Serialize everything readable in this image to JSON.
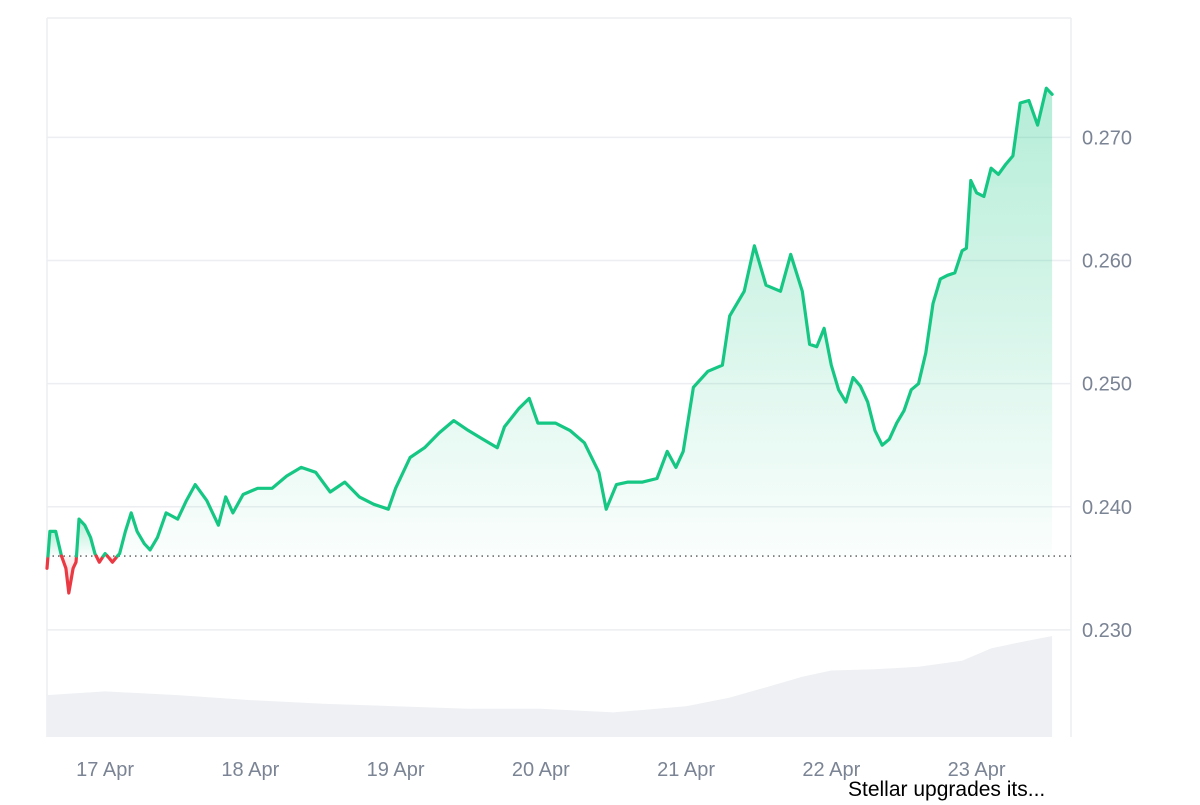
{
  "colors": {
    "up": "#16c784",
    "down": "#ea3943",
    "grid": "#eceef1",
    "volume": "#eef0f3",
    "tick_text": "#7b8494",
    "baseline": "#555555"
  },
  "news_caption": "Stellar upgrades its...",
  "chart_data": {
    "type": "area",
    "title": "",
    "xlabel": "",
    "ylabel": "",
    "y_axis_position": "right",
    "grid": true,
    "legend": "none",
    "xlim": [
      16.6,
      23.65
    ],
    "ylim": [
      0.2213,
      0.2797
    ],
    "baseline": 0.236,
    "y_ticks": [
      {
        "value": 0.23,
        "label": "0.230"
      },
      {
        "value": 0.24,
        "label": "0.240"
      },
      {
        "value": 0.25,
        "label": "0.250"
      },
      {
        "value": 0.26,
        "label": "0.260"
      },
      {
        "value": 0.27,
        "label": "0.270"
      }
    ],
    "x_ticks": [
      {
        "value": 17,
        "label": "17 Apr"
      },
      {
        "value": 18,
        "label": "18 Apr"
      },
      {
        "value": 19,
        "label": "19 Apr"
      },
      {
        "value": 20,
        "label": "20 Apr"
      },
      {
        "value": 21,
        "label": "21 Apr"
      },
      {
        "value": 22,
        "label": "22 Apr"
      },
      {
        "value": 23,
        "label": "23 Apr"
      }
    ],
    "series": [
      {
        "values": [
          [
            16.6,
            0.235
          ],
          [
            16.62,
            0.238
          ],
          [
            16.66,
            0.238
          ],
          [
            16.7,
            0.236
          ],
          [
            16.73,
            0.235
          ],
          [
            16.75,
            0.233
          ],
          [
            16.78,
            0.235
          ],
          [
            16.8,
            0.2355
          ],
          [
            16.82,
            0.239
          ],
          [
            16.86,
            0.2385
          ],
          [
            16.9,
            0.2375
          ],
          [
            16.93,
            0.2362
          ],
          [
            16.96,
            0.2355
          ],
          [
            17.0,
            0.2362
          ],
          [
            17.03,
            0.2358
          ],
          [
            17.05,
            0.2355
          ],
          [
            17.1,
            0.2362
          ],
          [
            17.14,
            0.238
          ],
          [
            17.18,
            0.2395
          ],
          [
            17.22,
            0.238
          ],
          [
            17.27,
            0.237
          ],
          [
            17.31,
            0.2365
          ],
          [
            17.36,
            0.2375
          ],
          [
            17.42,
            0.2395
          ],
          [
            17.5,
            0.239
          ],
          [
            17.56,
            0.2405
          ],
          [
            17.62,
            0.2418
          ],
          [
            17.7,
            0.2405
          ],
          [
            17.78,
            0.2385
          ],
          [
            17.83,
            0.2408
          ],
          [
            17.88,
            0.2395
          ],
          [
            17.95,
            0.241
          ],
          [
            18.05,
            0.2415
          ],
          [
            18.15,
            0.2415
          ],
          [
            18.25,
            0.2425
          ],
          [
            18.35,
            0.2432
          ],
          [
            18.45,
            0.2428
          ],
          [
            18.55,
            0.2412
          ],
          [
            18.65,
            0.242
          ],
          [
            18.75,
            0.2408
          ],
          [
            18.85,
            0.2402
          ],
          [
            18.95,
            0.2398
          ],
          [
            19.0,
            0.2415
          ],
          [
            19.1,
            0.244
          ],
          [
            19.2,
            0.2448
          ],
          [
            19.3,
            0.246
          ],
          [
            19.4,
            0.247
          ],
          [
            19.5,
            0.2462
          ],
          [
            19.6,
            0.2455
          ],
          [
            19.7,
            0.2448
          ],
          [
            19.75,
            0.2465
          ],
          [
            19.85,
            0.248
          ],
          [
            19.92,
            0.2488
          ],
          [
            19.98,
            0.2468
          ],
          [
            20.1,
            0.2468
          ],
          [
            20.2,
            0.2462
          ],
          [
            20.3,
            0.2452
          ],
          [
            20.4,
            0.2428
          ],
          [
            20.45,
            0.2398
          ],
          [
            20.52,
            0.2418
          ],
          [
            20.6,
            0.242
          ],
          [
            20.7,
            0.242
          ],
          [
            20.8,
            0.2423
          ],
          [
            20.87,
            0.2445
          ],
          [
            20.93,
            0.2432
          ],
          [
            20.98,
            0.2445
          ],
          [
            21.05,
            0.2497
          ],
          [
            21.15,
            0.251
          ],
          [
            21.25,
            0.2515
          ],
          [
            21.3,
            0.2555
          ],
          [
            21.4,
            0.2575
          ],
          [
            21.47,
            0.2612
          ],
          [
            21.55,
            0.258
          ],
          [
            21.65,
            0.2575
          ],
          [
            21.72,
            0.2605
          ],
          [
            21.8,
            0.2575
          ],
          [
            21.85,
            0.2532
          ],
          [
            21.9,
            0.253
          ],
          [
            21.95,
            0.2545
          ],
          [
            22.0,
            0.2515
          ],
          [
            22.05,
            0.2495
          ],
          [
            22.1,
            0.2485
          ],
          [
            22.15,
            0.2505
          ],
          [
            22.2,
            0.2498
          ],
          [
            22.25,
            0.2485
          ],
          [
            22.3,
            0.2462
          ],
          [
            22.35,
            0.245
          ],
          [
            22.4,
            0.2455
          ],
          [
            22.45,
            0.2468
          ],
          [
            22.5,
            0.2478
          ],
          [
            22.55,
            0.2495
          ],
          [
            22.6,
            0.25
          ],
          [
            22.65,
            0.2525
          ],
          [
            22.7,
            0.2565
          ],
          [
            22.75,
            0.2585
          ],
          [
            22.8,
            0.2588
          ],
          [
            22.85,
            0.259
          ],
          [
            22.9,
            0.2608
          ],
          [
            22.93,
            0.261
          ],
          [
            22.96,
            0.2665
          ],
          [
            23.0,
            0.2655
          ],
          [
            23.05,
            0.2652
          ],
          [
            23.1,
            0.2675
          ],
          [
            23.15,
            0.267
          ],
          [
            23.2,
            0.2678
          ],
          [
            23.25,
            0.2685
          ],
          [
            23.3,
            0.2728
          ],
          [
            23.36,
            0.273
          ],
          [
            23.42,
            0.271
          ],
          [
            23.48,
            0.274
          ],
          [
            23.52,
            0.2735
          ]
        ]
      }
    ],
    "volume": [
      [
        16.6,
        0.2247
      ],
      [
        17.0,
        0.225
      ],
      [
        17.5,
        0.2247
      ],
      [
        18.0,
        0.2243
      ],
      [
        18.5,
        0.224
      ],
      [
        19.0,
        0.2238
      ],
      [
        19.5,
        0.2236
      ],
      [
        20.0,
        0.2236
      ],
      [
        20.5,
        0.2233
      ],
      [
        21.0,
        0.2238
      ],
      [
        21.3,
        0.2245
      ],
      [
        21.6,
        0.2255
      ],
      [
        21.8,
        0.2262
      ],
      [
        22.0,
        0.2267
      ],
      [
        22.3,
        0.2268
      ],
      [
        22.6,
        0.227
      ],
      [
        22.9,
        0.2275
      ],
      [
        23.1,
        0.2285
      ],
      [
        23.3,
        0.229
      ],
      [
        23.52,
        0.2295
      ]
    ]
  }
}
